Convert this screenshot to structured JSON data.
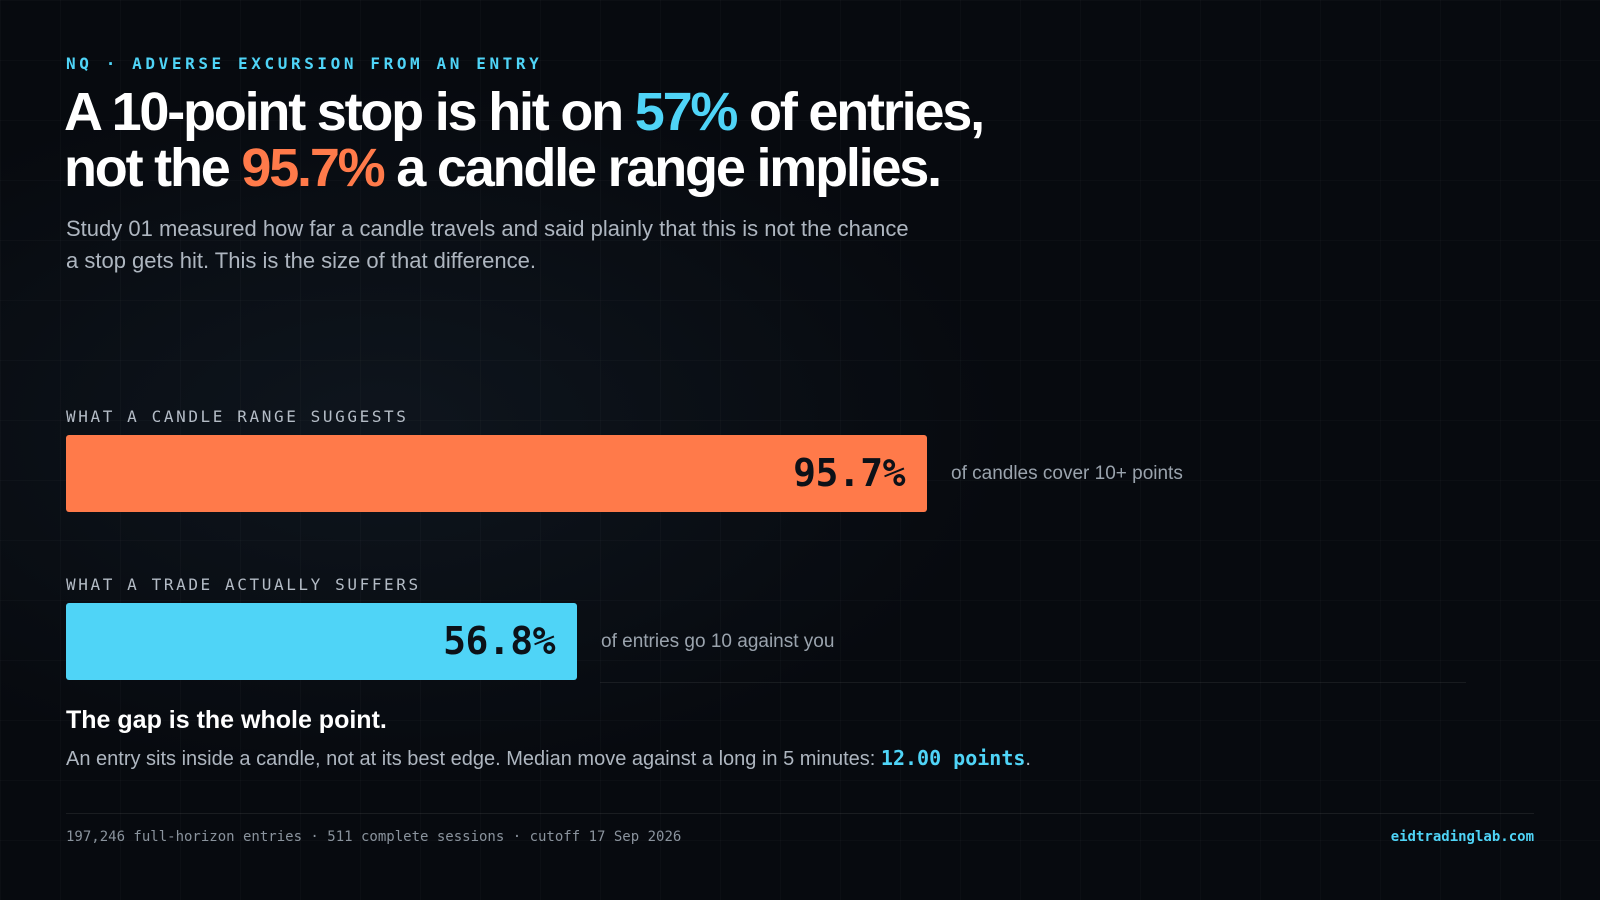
{
  "eyebrow": "NQ · ADVERSE EXCURSION FROM AN ENTRY",
  "headline": {
    "line1_pre": "A 10-point stop is hit on ",
    "line1_highlight": "57%",
    "line1_post": " of entries,",
    "line2_pre": "not the ",
    "line2_highlight": "95.7%",
    "line2_post": " a candle range implies."
  },
  "subtitle": "Study 01 measured how far a candle travels and said plainly that this is not the chance a stop gets hit. This is the size of that difference.",
  "chart_data": {
    "type": "bar",
    "orientation": "horizontal",
    "xlim": [
      0,
      100
    ],
    "categories": [
      "WHAT A CANDLE RANGE SUGGESTS",
      "WHAT A TRADE ACTUALLY SUFFERS"
    ],
    "values": [
      95.7,
      56.8
    ],
    "value_labels": [
      "95.7%",
      "56.8%"
    ],
    "notes": [
      "of candles cover 10+ points",
      "of entries go 10 against you"
    ],
    "colors": [
      "#ff7a4a",
      "#4fd4f7"
    ]
  },
  "gap": {
    "title": "The gap is the whole point.",
    "body_pre": "An entry sits inside a candle, not at its best edge. Median move against a long in 5 minutes: ",
    "body_value": "12.00 points",
    "body_post": "."
  },
  "footer": {
    "meta": "197,246 full-horizon entries · 511 complete sessions · cutoff 17 Sep 2026",
    "site": "eidtradinglab.com"
  },
  "colors": {
    "background": "#070a0f",
    "accent_cyan": "#4fd4f7",
    "accent_orange": "#ff7a4a",
    "text_primary": "#ffffff",
    "text_muted": "#aeb6c0"
  }
}
